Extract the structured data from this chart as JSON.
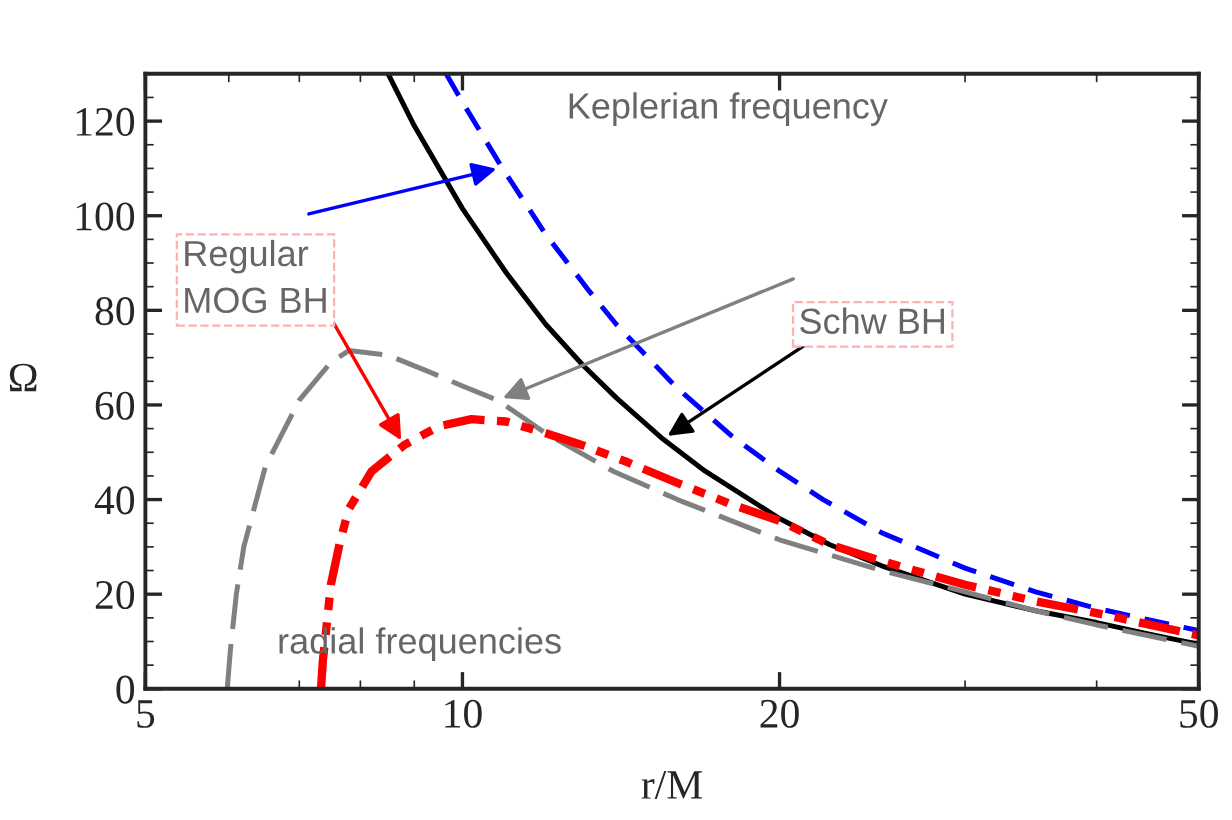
{
  "chart_data": {
    "type": "line",
    "xlabel": "r/M",
    "ylabel": "Ω",
    "log": "x",
    "xlim": [
      5,
      50
    ],
    "xticks": [
      5,
      10,
      20,
      50
    ],
    "ylim": [
      0,
      130
    ],
    "yticks": [
      0,
      20,
      40,
      60,
      80,
      100,
      120
    ],
    "grid": false,
    "legend": false,
    "series": [
      {
        "color": "#000000",
        "line_style": "solid",
        "x": [
          8.5,
          9,
          10,
          11,
          12,
          13,
          14,
          15.5,
          17,
          20,
          22.3,
          25,
          30,
          35,
          40,
          45,
          50
        ],
        "values": [
          130,
          119,
          101.5,
          88,
          77,
          68.5,
          61.5,
          52.8,
          46,
          36,
          30.5,
          26,
          20,
          16.5,
          14,
          11.5,
          9.4
        ]
      },
      {
        "color": "#0000ff",
        "line_style": "dashed",
        "x": [
          9.65,
          10,
          10.9,
          12,
          13.2,
          14,
          15,
          16,
          18,
          20,
          22,
          25,
          30,
          35,
          40,
          45,
          50
        ],
        "values": [
          130,
          124,
          110.2,
          96,
          84,
          77,
          70,
          63.5,
          53.5,
          46,
          40,
          33,
          25.5,
          20.5,
          17,
          14.5,
          12.3
        ]
      },
      {
        "color": "#808080",
        "line_style": "dashed",
        "x": [
          5.98,
          6.02,
          6.1,
          6.2,
          6.5,
          7,
          7.5,
          7.8,
          8.5,
          9.3,
          10,
          10.8,
          12,
          13.9,
          16,
          20,
          25,
          30,
          35,
          40,
          50
        ],
        "values": [
          0,
          8,
          20,
          30,
          47,
          61,
          69,
          71.5,
          70.5,
          67,
          64,
          61,
          54,
          46,
          40,
          31.5,
          25,
          20.5,
          16.5,
          13.5,
          9
        ]
      },
      {
        "color": "#ff0000",
        "line_style": "dashdot",
        "x": [
          7.34,
          7.37,
          7.42,
          7.5,
          7.65,
          7.8,
          8.2,
          8.8,
          9.5,
          10.2,
          11,
          12,
          13,
          14.3,
          16,
          18,
          20,
          22.3,
          25,
          30,
          35,
          40,
          50
        ],
        "values": [
          0,
          6,
          12,
          22,
          31,
          38,
          46,
          51.5,
          55.5,
          57,
          56.5,
          54,
          51.5,
          48,
          43.5,
          39,
          35.5,
          30.5,
          27,
          22,
          18.5,
          16,
          11.3
        ]
      }
    ],
    "annotations": [
      "Keplerian frequency",
      {
        "text": "Regular\nMOG BH",
        "x": 8.8,
        "y": 51.5
      },
      {
        "text": "Schw BH",
        "x": 15.5,
        "y": 52.8
      },
      "radial frequencies"
    ]
  }
}
